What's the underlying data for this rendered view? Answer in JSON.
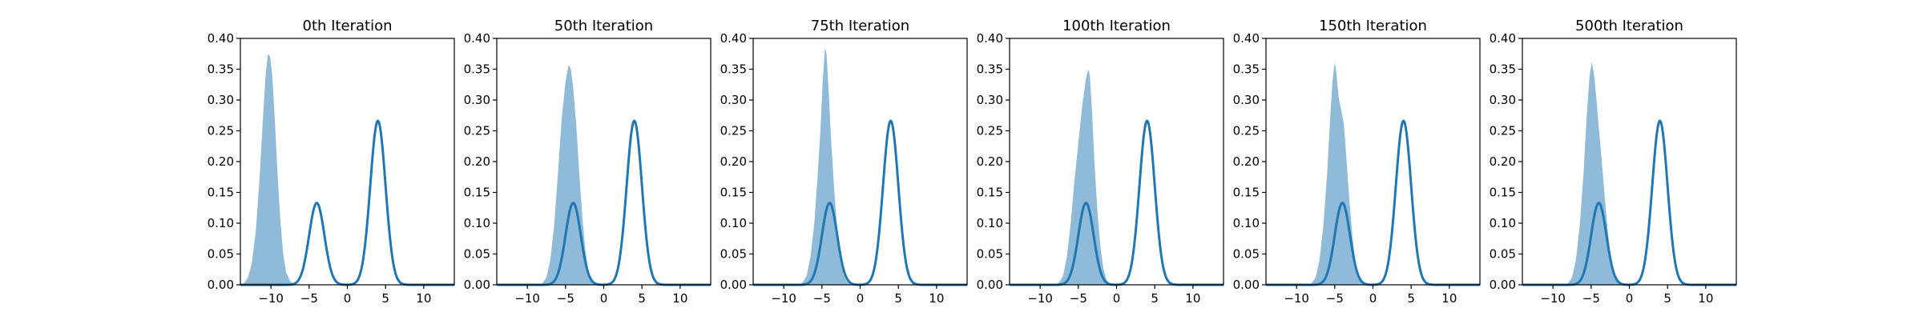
{
  "figure": {
    "colors": {
      "fill": "#1f77b4",
      "line": "#1f77b4",
      "axes": "#000000",
      "background": "#ffffff"
    }
  },
  "chart_data": [
    {
      "type": "area",
      "title": "0th Iteration",
      "xlabel": "",
      "ylabel": "",
      "xlim": [
        -14,
        14
      ],
      "ylim": [
        0,
        0.4
      ],
      "xticks": [
        -10,
        -5,
        0,
        5,
        10
      ],
      "xtick_labels": [
        "−10",
        "−5",
        "0",
        "5",
        "10"
      ],
      "yticks": [
        0,
        0.05,
        0.1,
        0.15,
        0.2,
        0.25,
        0.3,
        0.35,
        0.4
      ],
      "ytick_labels": [
        "0.00",
        "0.05",
        "0.10",
        "0.15",
        "0.20",
        "0.25",
        "0.30",
        "0.35",
        "0.40"
      ],
      "grid": false,
      "target_density": {
        "components": [
          {
            "mean": -4,
            "sd": 1,
            "weight": 0.333
          },
          {
            "mean": 4,
            "sd": 1,
            "weight": 0.667
          }
        ]
      },
      "sample_density": {
        "points": [
          [
            -14,
            0.0
          ],
          [
            -13.5,
            0.003
          ],
          [
            -13,
            0.012
          ],
          [
            -12.5,
            0.035
          ],
          [
            -12,
            0.085
          ],
          [
            -11.5,
            0.17
          ],
          [
            -11,
            0.28
          ],
          [
            -10.7,
            0.34
          ],
          [
            -10.4,
            0.375
          ],
          [
            -10.1,
            0.37
          ],
          [
            -9.8,
            0.335
          ],
          [
            -9.5,
            0.27
          ],
          [
            -9.2,
            0.195
          ],
          [
            -8.8,
            0.11
          ],
          [
            -8.4,
            0.05
          ],
          [
            -8.0,
            0.02
          ],
          [
            -7.5,
            0.006
          ],
          [
            -7.0,
            0.001
          ],
          [
            -6.5,
            0.0
          ]
        ]
      }
    },
    {
      "type": "area",
      "title": "50th Iteration",
      "xlabel": "",
      "ylabel": "",
      "xlim": [
        -14,
        14
      ],
      "ylim": [
        0,
        0.4
      ],
      "xticks": [
        -10,
        -5,
        0,
        5,
        10
      ],
      "xtick_labels": [
        "−10",
        "−5",
        "0",
        "5",
        "10"
      ],
      "yticks": [
        0,
        0.05,
        0.1,
        0.15,
        0.2,
        0.25,
        0.3,
        0.35,
        0.4
      ],
      "ytick_labels": [
        "0.00",
        "0.05",
        "0.10",
        "0.15",
        "0.20",
        "0.25",
        "0.30",
        "0.35",
        "0.40"
      ],
      "grid": false,
      "target_density": {
        "components": [
          {
            "mean": -4,
            "sd": 1,
            "weight": 0.333
          },
          {
            "mean": 4,
            "sd": 1,
            "weight": 0.667
          }
        ]
      },
      "sample_density": {
        "points": [
          [
            -8.5,
            0.0
          ],
          [
            -8,
            0.003
          ],
          [
            -7.5,
            0.012
          ],
          [
            -7,
            0.04
          ],
          [
            -6.5,
            0.095
          ],
          [
            -6,
            0.18
          ],
          [
            -5.5,
            0.27
          ],
          [
            -5,
            0.33
          ],
          [
            -4.6,
            0.357
          ],
          [
            -4.3,
            0.35
          ],
          [
            -4,
            0.32
          ],
          [
            -3.6,
            0.26
          ],
          [
            -3.2,
            0.18
          ],
          [
            -2.8,
            0.11
          ],
          [
            -2.4,
            0.055
          ],
          [
            -2.0,
            0.022
          ],
          [
            -1.5,
            0.006
          ],
          [
            -1.0,
            0.001
          ],
          [
            -0.5,
            0.0
          ]
        ]
      }
    },
    {
      "type": "area",
      "title": "75th Iteration",
      "xlabel": "",
      "ylabel": "",
      "xlim": [
        -14,
        14
      ],
      "ylim": [
        0,
        0.4
      ],
      "xticks": [
        -10,
        -5,
        0,
        5,
        10
      ],
      "xtick_labels": [
        "−10",
        "−5",
        "0",
        "5",
        "10"
      ],
      "yticks": [
        0,
        0.05,
        0.1,
        0.15,
        0.2,
        0.25,
        0.3,
        0.35,
        0.4
      ],
      "ytick_labels": [
        "0.00",
        "0.05",
        "0.10",
        "0.15",
        "0.20",
        "0.25",
        "0.30",
        "0.35",
        "0.40"
      ],
      "grid": false,
      "target_density": {
        "components": [
          {
            "mean": -4,
            "sd": 1,
            "weight": 0.333
          },
          {
            "mean": 4,
            "sd": 1,
            "weight": 0.667
          }
        ]
      },
      "sample_density": {
        "points": [
          [
            -8,
            0.0
          ],
          [
            -7.5,
            0.004
          ],
          [
            -7,
            0.015
          ],
          [
            -6.5,
            0.045
          ],
          [
            -6,
            0.1
          ],
          [
            -5.6,
            0.17
          ],
          [
            -5.2,
            0.25
          ],
          [
            -4.9,
            0.33
          ],
          [
            -4.6,
            0.385
          ],
          [
            -4.4,
            0.375
          ],
          [
            -4.1,
            0.31
          ],
          [
            -3.8,
            0.235
          ],
          [
            -3.4,
            0.155
          ],
          [
            -3.0,
            0.09
          ],
          [
            -2.6,
            0.045
          ],
          [
            -2.2,
            0.018
          ],
          [
            -1.8,
            0.006
          ],
          [
            -1.3,
            0.001
          ],
          [
            -0.8,
            0.0
          ]
        ]
      }
    },
    {
      "type": "area",
      "title": "100th Iteration",
      "xlabel": "",
      "ylabel": "",
      "xlim": [
        -14,
        14
      ],
      "ylim": [
        0,
        0.4
      ],
      "xticks": [
        -10,
        -5,
        0,
        5,
        10
      ],
      "xtick_labels": [
        "−10",
        "−5",
        "0",
        "5",
        "10"
      ],
      "yticks": [
        0,
        0.05,
        0.1,
        0.15,
        0.2,
        0.25,
        0.3,
        0.35,
        0.4
      ],
      "ytick_labels": [
        "0.00",
        "0.05",
        "0.10",
        "0.15",
        "0.20",
        "0.25",
        "0.30",
        "0.35",
        "0.40"
      ],
      "grid": false,
      "target_density": {
        "components": [
          {
            "mean": -4,
            "sd": 1,
            "weight": 0.333
          },
          {
            "mean": 4,
            "sd": 1,
            "weight": 0.667
          }
        ]
      },
      "sample_density": {
        "points": [
          [
            -8,
            0.0
          ],
          [
            -7.5,
            0.004
          ],
          [
            -7,
            0.015
          ],
          [
            -6.5,
            0.045
          ],
          [
            -6,
            0.1
          ],
          [
            -5.5,
            0.17
          ],
          [
            -5,
            0.23
          ],
          [
            -4.5,
            0.29
          ],
          [
            -4.0,
            0.335
          ],
          [
            -3.7,
            0.35
          ],
          [
            -3.5,
            0.34
          ],
          [
            -3.2,
            0.28
          ],
          [
            -2.9,
            0.2
          ],
          [
            -2.5,
            0.12
          ],
          [
            -2.1,
            0.06
          ],
          [
            -1.7,
            0.025
          ],
          [
            -1.3,
            0.008
          ],
          [
            -0.8,
            0.001
          ],
          [
            -0.3,
            0.0
          ]
        ]
      }
    },
    {
      "type": "area",
      "title": "150th Iteration",
      "xlabel": "",
      "ylabel": "",
      "xlim": [
        -14,
        14
      ],
      "ylim": [
        0,
        0.4
      ],
      "xticks": [
        -10,
        -5,
        0,
        5,
        10
      ],
      "xtick_labels": [
        "−10",
        "−5",
        "0",
        "5",
        "10"
      ],
      "yticks": [
        0,
        0.05,
        0.1,
        0.15,
        0.2,
        0.25,
        0.3,
        0.35,
        0.4
      ],
      "ytick_labels": [
        "0.00",
        "0.05",
        "0.10",
        "0.15",
        "0.20",
        "0.25",
        "0.30",
        "0.35",
        "0.40"
      ],
      "grid": false,
      "target_density": {
        "components": [
          {
            "mean": -4,
            "sd": 1,
            "weight": 0.333
          },
          {
            "mean": 4,
            "sd": 1,
            "weight": 0.667
          }
        ]
      },
      "sample_density": {
        "points": [
          [
            -8.5,
            0.0
          ],
          [
            -8,
            0.003
          ],
          [
            -7.5,
            0.012
          ],
          [
            -7,
            0.04
          ],
          [
            -6.5,
            0.095
          ],
          [
            -6,
            0.18
          ],
          [
            -5.6,
            0.27
          ],
          [
            -5.3,
            0.33
          ],
          [
            -5.0,
            0.362
          ],
          [
            -4.8,
            0.345
          ],
          [
            -4.5,
            0.305
          ],
          [
            -4.1,
            0.28
          ],
          [
            -3.8,
            0.26
          ],
          [
            -3.5,
            0.21
          ],
          [
            -3.1,
            0.14
          ],
          [
            -2.7,
            0.08
          ],
          [
            -2.3,
            0.038
          ],
          [
            -1.9,
            0.014
          ],
          [
            -1.4,
            0.004
          ],
          [
            -0.9,
            0.0
          ]
        ]
      }
    },
    {
      "type": "area",
      "title": "500th Iteration",
      "xlabel": "",
      "ylabel": "",
      "xlim": [
        -14,
        14
      ],
      "ylim": [
        0,
        0.4
      ],
      "xticks": [
        -10,
        -5,
        0,
        5,
        10
      ],
      "xtick_labels": [
        "−10",
        "−5",
        "0",
        "5",
        "10"
      ],
      "yticks": [
        0,
        0.05,
        0.1,
        0.15,
        0.2,
        0.25,
        0.3,
        0.35,
        0.4
      ],
      "ytick_labels": [
        "0.00",
        "0.05",
        "0.10",
        "0.15",
        "0.20",
        "0.25",
        "0.30",
        "0.35",
        "0.40"
      ],
      "grid": false,
      "target_density": {
        "components": [
          {
            "mean": -4,
            "sd": 1,
            "weight": 0.333
          },
          {
            "mean": 4,
            "sd": 1,
            "weight": 0.667
          }
        ]
      },
      "sample_density": {
        "points": [
          [
            -8.5,
            0.0
          ],
          [
            -8,
            0.003
          ],
          [
            -7.5,
            0.012
          ],
          [
            -7,
            0.04
          ],
          [
            -6.5,
            0.095
          ],
          [
            -6,
            0.18
          ],
          [
            -5.6,
            0.27
          ],
          [
            -5.2,
            0.34
          ],
          [
            -4.9,
            0.362
          ],
          [
            -4.6,
            0.34
          ],
          [
            -4.3,
            0.3
          ],
          [
            -4.0,
            0.255
          ],
          [
            -3.6,
            0.2
          ],
          [
            -3.2,
            0.14
          ],
          [
            -2.8,
            0.085
          ],
          [
            -2.4,
            0.042
          ],
          [
            -2.0,
            0.016
          ],
          [
            -1.5,
            0.004
          ],
          [
            -1.0,
            0.0
          ]
        ]
      }
    }
  ]
}
